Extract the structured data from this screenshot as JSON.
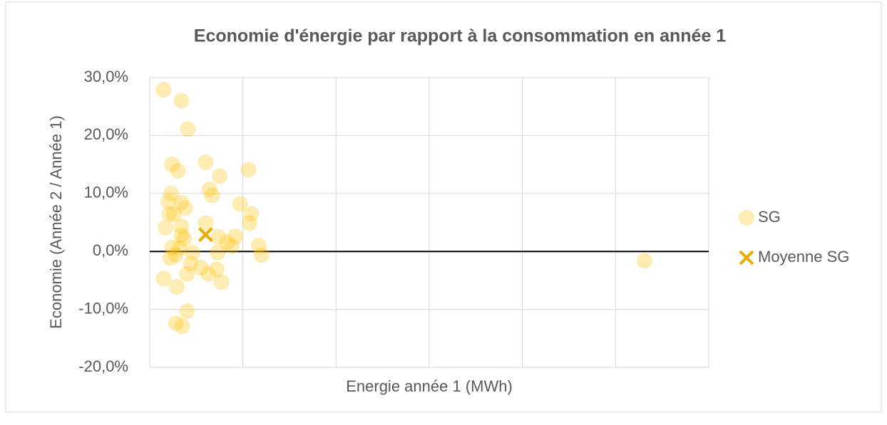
{
  "chart_data": {
    "type": "scatter",
    "title": "Economie d'énergie par rapport à la consommation en année 1",
    "xlabel": "Energie année 1 (MWh)",
    "ylabel": "Economie (Année 2 / Année 1)",
    "xlim": [
      0,
      6
    ],
    "xticks": [
      0,
      1,
      2,
      3,
      4,
      5,
      6
    ],
    "show_xtick_labels": false,
    "ylim": [
      -20,
      30
    ],
    "yticks": [
      {
        "value": -20,
        "label": "-20,0%"
      },
      {
        "value": -10,
        "label": "-10,0%"
      },
      {
        "value": 0,
        "label": "0,0%"
      },
      {
        "value": 10,
        "label": "10,0%"
      },
      {
        "value": 20,
        "label": "20,0%"
      },
      {
        "value": 30,
        "label": "30,0%"
      }
    ],
    "grid": true,
    "legend": "right",
    "series": [
      {
        "name": "SG",
        "color": "#ffc000",
        "opacity": 0.3,
        "marker": "circle",
        "x": [
          0.15,
          0.34,
          0.41,
          0.24,
          0.3,
          0.6,
          0.75,
          1.06,
          0.23,
          0.2,
          0.34,
          0.38,
          0.26,
          0.21,
          0.64,
          0.67,
          0.97,
          1.09,
          1.07,
          0.6,
          0.17,
          0.34,
          0.34,
          0.37,
          0.74,
          0.92,
          0.83,
          1.17,
          1.2,
          0.24,
          0.32,
          0.28,
          0.22,
          0.46,
          0.44,
          0.4,
          0.55,
          0.63,
          0.72,
          0.77,
          0.15,
          0.29,
          0.4,
          0.28,
          0.35,
          0.88,
          0.73,
          5.31
        ],
        "values": [
          27.9,
          26.0,
          21.1,
          15.0,
          13.9,
          15.4,
          13.0,
          14.1,
          10.0,
          8.6,
          8.4,
          7.5,
          6.4,
          6.5,
          10.7,
          9.7,
          8.2,
          6.5,
          4.9,
          4.9,
          4.1,
          4.3,
          2.8,
          2.2,
          2.5,
          2.6,
          1.6,
          1.0,
          -0.6,
          0.7,
          0.6,
          -0.6,
          -1.1,
          -0.2,
          -2.1,
          -3.9,
          -2.8,
          -3.9,
          -3.1,
          -5.3,
          -4.7,
          -6.1,
          -10.3,
          -12.4,
          -12.9,
          0.9,
          -0.2,
          -1.6
        ]
      },
      {
        "name": "Moyenne SG",
        "color": "#e8ad00",
        "marker": "x",
        "x": [
          0.6
        ],
        "values": [
          2.9
        ]
      }
    ]
  }
}
